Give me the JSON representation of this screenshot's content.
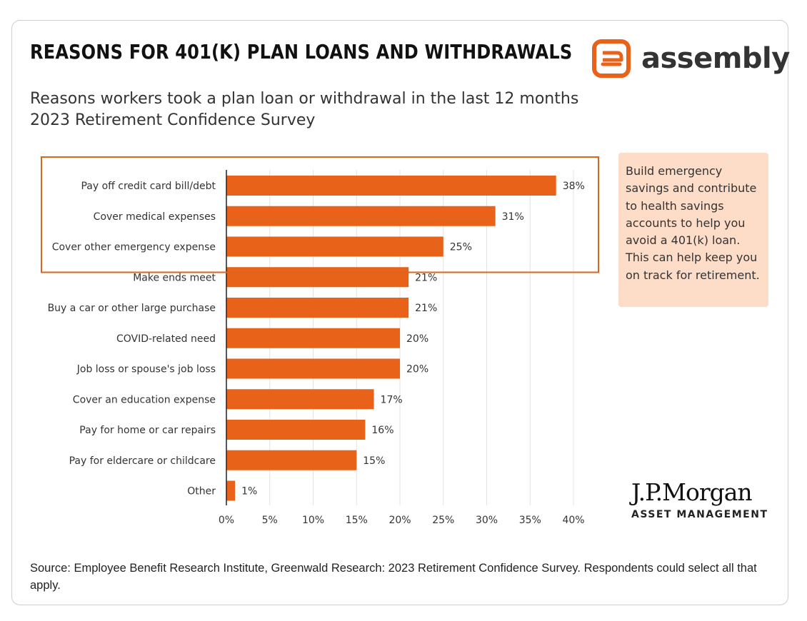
{
  "title": "REASONS FOR 401(K) PLAN LOANS AND WITHDRAWALS",
  "subtitle_line1": "Reasons workers took a plan loan or withdrawal in the last 12 months",
  "subtitle_line2": "2023 Retirement Confidence Survey",
  "brand": {
    "name": "assembly",
    "logo_icon": "assembly-logo-icon",
    "accent_color": "#e8621a"
  },
  "callout_text": "Build emergency savings and contribute to health savings accounts to help you avoid a 401(k) loan. This can help keep you on track for retirement.",
  "jpmorgan": {
    "name": "J.P.Morgan",
    "sub": "ASSET MANAGEMENT"
  },
  "source": "Source: Employee Benefit Research Institute, Greenwald Research: 2023 Retirement Confidence Survey. Respondents could select all that apply.",
  "chart_data": {
    "type": "bar",
    "orientation": "horizontal",
    "categories": [
      "Pay off credit card bill/debt",
      "Cover medical expenses",
      "Cover other emergency expense",
      "Make ends meet",
      "Buy a car or other large purchase",
      "COVID-related need",
      "Job loss or spouse's job loss",
      "Cover an education expense",
      "Pay for home or car repairs",
      "Pay for eldercare or childcare",
      "Other"
    ],
    "values": [
      38,
      31,
      25,
      21,
      21,
      20,
      20,
      17,
      16,
      15,
      1
    ],
    "value_labels": [
      "38%",
      "31%",
      "25%",
      "21%",
      "21%",
      "20%",
      "20%",
      "17%",
      "16%",
      "15%",
      "1%"
    ],
    "xticks": [
      "0%",
      "5%",
      "10%",
      "15%",
      "20%",
      "25%",
      "30%",
      "35%",
      "40%"
    ],
    "xlim": [
      0,
      40
    ],
    "grid": true,
    "highlighted_categories": 3,
    "bar_color": "#e8621a",
    "highlight_color": "#d9661f"
  }
}
